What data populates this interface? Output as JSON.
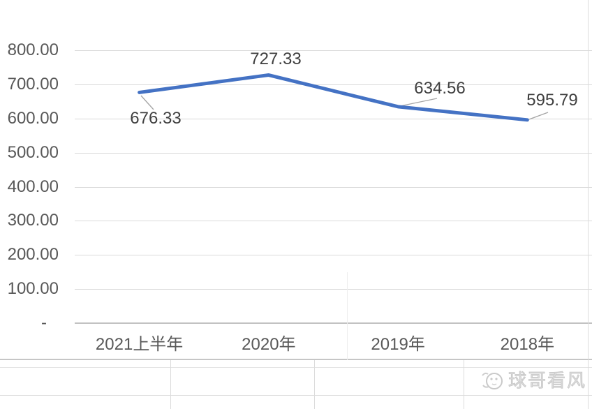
{
  "chart_data": {
    "type": "line",
    "title": "",
    "categories": [
      "2021上半年",
      "2020年",
      "2019年",
      "2018年"
    ],
    "series": [
      {
        "name": "",
        "values": [
          676.33,
          727.33,
          634.56,
          595.79
        ]
      }
    ],
    "data_labels": [
      "676.33",
      "727.33",
      "634.56",
      "595.79"
    ],
    "y_axis": {
      "ticks": [
        "800.00",
        "700.00",
        "600.00",
        "500.00",
        "400.00",
        "300.00",
        "200.00",
        "100.00",
        "-"
      ],
      "min": 0,
      "max": 800,
      "step": 100
    },
    "xlabel": "",
    "ylabel": "",
    "grid": "horizontal",
    "legend": "none",
    "line_color": "#4472C4"
  },
  "watermark": {
    "text": "球哥看风",
    "icon": "fish-icon"
  },
  "colors": {
    "series_line": "#4472C4",
    "gridline": "#D9D9D9",
    "axis_line": "#C2C2C2",
    "axis_text": "#595959",
    "data_label_text": "#3F3F3F",
    "leader_line": "#A6A6A6",
    "watermark": "#C9C9C9",
    "sheet_border": "#DCDCDC"
  }
}
